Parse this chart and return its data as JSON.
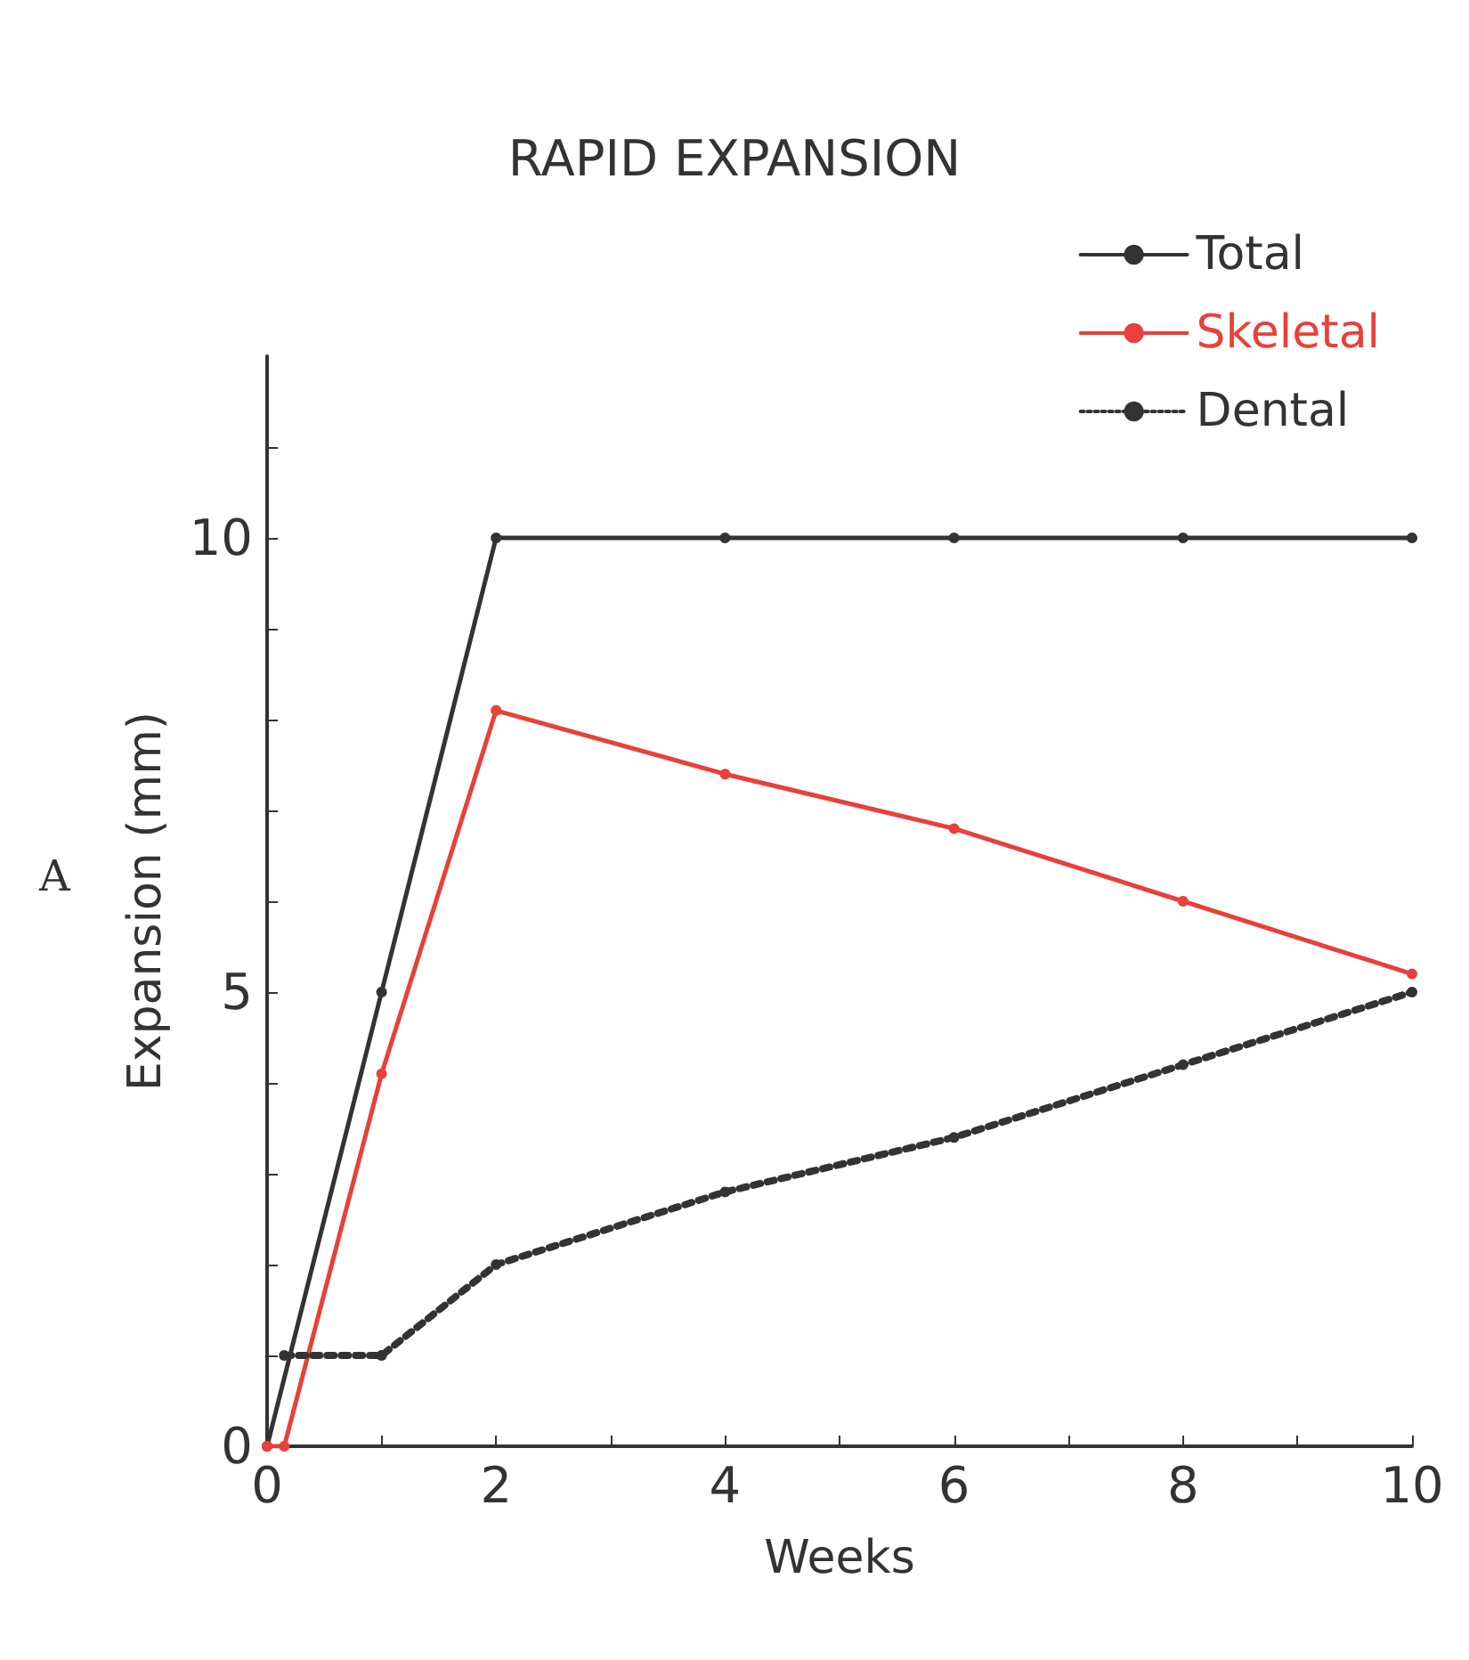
{
  "chart_data": {
    "type": "line",
    "title": "RAPID EXPANSION",
    "xlabel": "Weeks",
    "ylabel": "Expansion (mm)",
    "annotations": [
      "A"
    ],
    "xlim": [
      0,
      10
    ],
    "xticks": [
      0,
      {
        "value": 1,
        "label": null
      },
      2,
      {
        "value": 3,
        "label": null
      },
      4,
      {
        "value": 5,
        "label": null
      },
      6,
      {
        "value": 7,
        "label": null
      },
      8,
      {
        "value": 9,
        "label": null
      },
      10
    ],
    "ylim": [
      0,
      12
    ],
    "yticks": [
      0,
      {
        "value": 1,
        "label": null
      },
      {
        "value": 2,
        "label": null
      },
      {
        "value": 3,
        "label": null
      },
      {
        "value": 4,
        "label": null
      },
      5,
      {
        "value": 6,
        "label": null
      },
      {
        "value": 7,
        "label": null
      },
      {
        "value": 8,
        "label": null
      },
      {
        "value": 9,
        "label": null
      },
      10,
      {
        "value": 11,
        "label": null
      }
    ],
    "grid": false,
    "legend": "top right",
    "marker": "circle",
    "series": [
      {
        "name": "Total",
        "color": "#333333",
        "line_style": "solid",
        "x": [
          0,
          1,
          2,
          4,
          6,
          8,
          10
        ],
        "values": [
          0,
          5,
          10,
          10,
          10,
          10,
          10
        ]
      },
      {
        "name": "Skeletal",
        "color": "#e8403a",
        "line_style": "solid",
        "x": [
          0,
          0.15,
          1,
          2,
          4,
          6,
          8,
          10
        ],
        "values": [
          0,
          0,
          4.1,
          8.1,
          7.4,
          6.8,
          6.0,
          5.2
        ]
      },
      {
        "name": "Dental",
        "color": "#333333",
        "line_style": "dotted",
        "x": [
          0.15,
          1,
          2,
          4,
          6,
          8,
          10
        ],
        "values": [
          1,
          1,
          2.0,
          2.8,
          3.4,
          4.2,
          5.0
        ]
      }
    ]
  }
}
